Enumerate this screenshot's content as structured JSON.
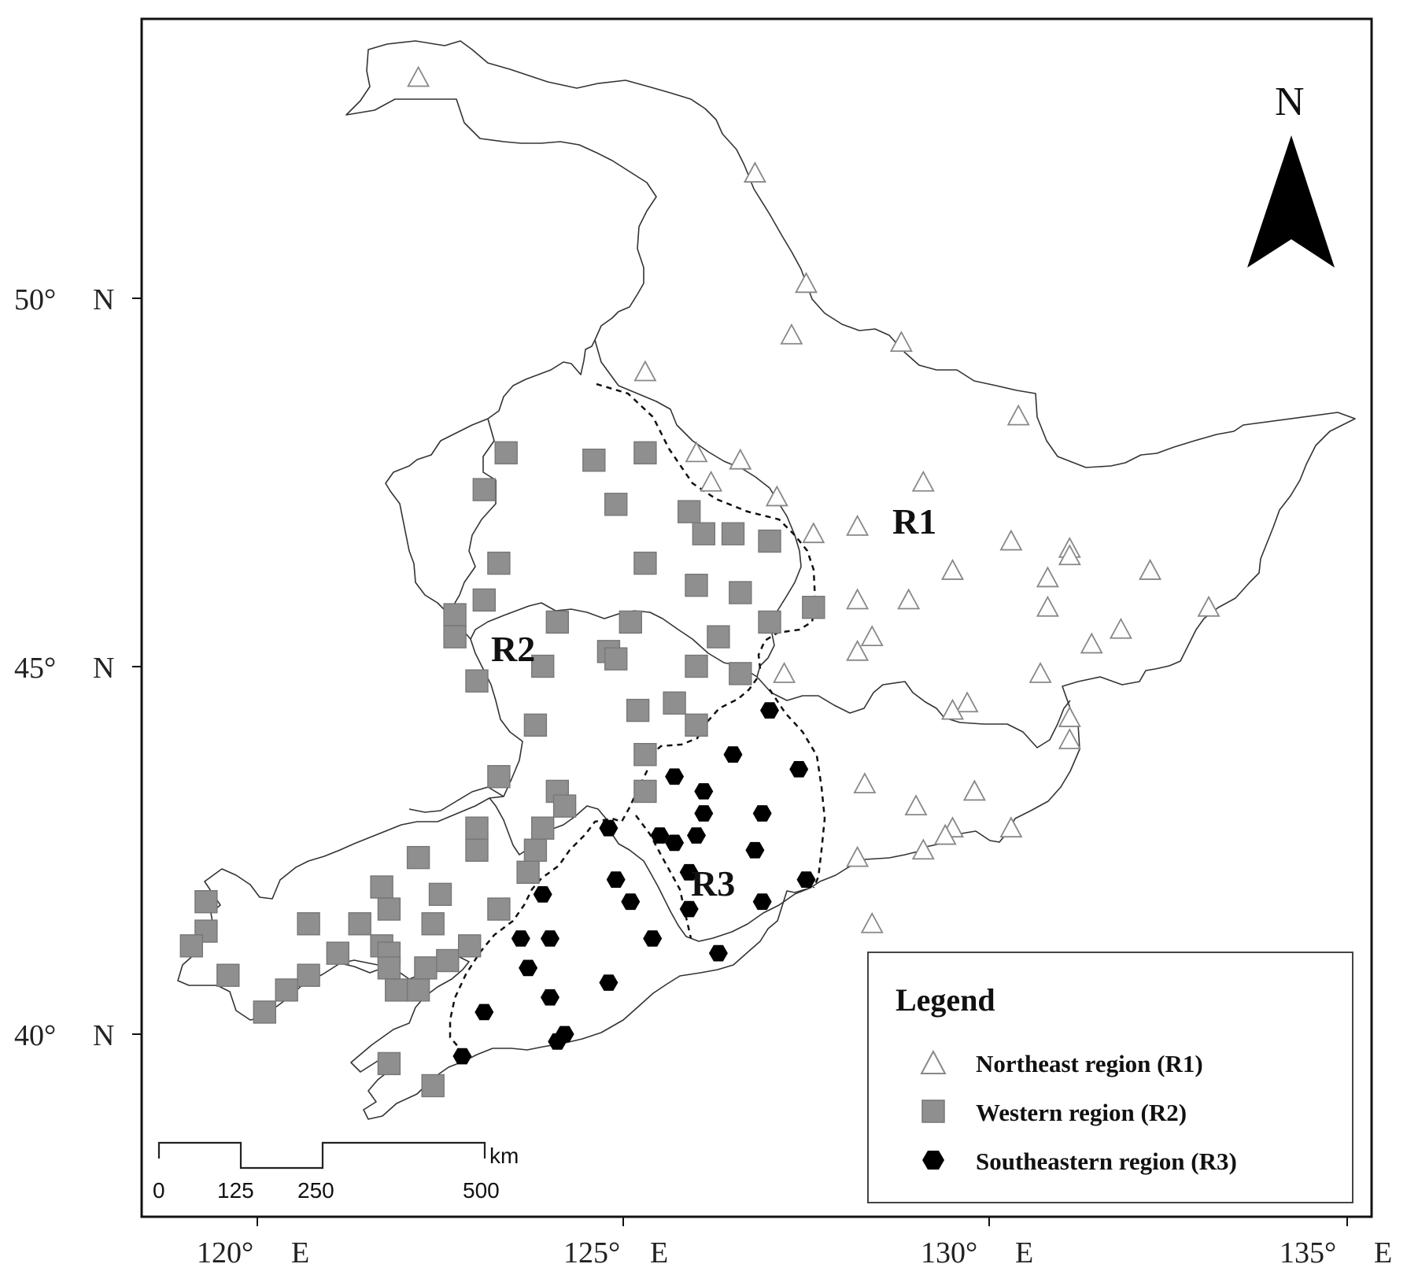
{
  "axes": {
    "lat_ticks": [
      {
        "value": 50,
        "deg": "50°",
        "hem": "N"
      },
      {
        "value": 45,
        "deg": "45°",
        "hem": "N"
      },
      {
        "value": 40,
        "deg": "40°",
        "hem": "N"
      }
    ],
    "lon_ticks": [
      {
        "value": 120,
        "deg": "120°",
        "hem": "E"
      },
      {
        "value": 125,
        "deg": "125°",
        "hem": "E"
      },
      {
        "value": 130,
        "deg": "130°",
        "hem": "E"
      },
      {
        "value": 135,
        "deg": "135°",
        "hem": "E"
      }
    ]
  },
  "north_arrow": {
    "label": "N"
  },
  "region_labels": [
    {
      "text": "R1"
    },
    {
      "text": "R2"
    },
    {
      "text": "R3"
    }
  ],
  "legend": {
    "title": "Legend",
    "items": [
      {
        "label": "Northeast region (R1)",
        "symbol": "triangle"
      },
      {
        "label": "Western region (R2)",
        "symbol": "square"
      },
      {
        "label": "Southeastern region (R3)",
        "symbol": "hexagon"
      }
    ]
  },
  "scale_bar": {
    "ticks": [
      "0",
      "125",
      "250",
      "500"
    ],
    "unit": "km"
  },
  "colors": {
    "r1": "#ffffff",
    "r2": "#8f8f8f",
    "r3": "#000000",
    "boundary": "#333333"
  },
  "stations": {
    "r1": [
      [
        122.2,
        53.0
      ],
      [
        126.8,
        51.7
      ],
      [
        127.5,
        50.2
      ],
      [
        127.3,
        49.5
      ],
      [
        128.8,
        49.4
      ],
      [
        125.3,
        49.0
      ],
      [
        130.4,
        48.4
      ],
      [
        126.0,
        47.9
      ],
      [
        126.6,
        47.8
      ],
      [
        126.2,
        47.5
      ],
      [
        127.1,
        47.3
      ],
      [
        129.1,
        47.5
      ],
      [
        127.6,
        46.8
      ],
      [
        128.2,
        46.9
      ],
      [
        130.3,
        46.7
      ],
      [
        131.1,
        46.6
      ],
      [
        131.1,
        46.5
      ],
      [
        129.5,
        46.3
      ],
      [
        130.8,
        46.2
      ],
      [
        132.2,
        46.3
      ],
      [
        128.2,
        45.9
      ],
      [
        128.9,
        45.9
      ],
      [
        130.8,
        45.8
      ],
      [
        133.0,
        45.8
      ],
      [
        131.8,
        45.5
      ],
      [
        128.4,
        45.4
      ],
      [
        128.2,
        45.2
      ],
      [
        131.4,
        45.3
      ],
      [
        130.7,
        44.9
      ],
      [
        127.2,
        44.9
      ],
      [
        129.7,
        44.5
      ],
      [
        129.5,
        44.4
      ],
      [
        131.1,
        44.3
      ],
      [
        131.1,
        44.0
      ],
      [
        128.3,
        43.4
      ],
      [
        129.8,
        43.3
      ],
      [
        129.0,
        43.1
      ],
      [
        129.5,
        42.8
      ],
      [
        129.4,
        42.7
      ],
      [
        130.3,
        42.8
      ],
      [
        128.2,
        42.4
      ],
      [
        129.1,
        42.5
      ],
      [
        128.4,
        41.5
      ]
    ],
    "r2": [
      [
        123.4,
        47.9
      ],
      [
        124.6,
        47.8
      ],
      [
        125.3,
        47.9
      ],
      [
        123.1,
        47.4
      ],
      [
        124.9,
        47.2
      ],
      [
        125.9,
        47.1
      ],
      [
        126.1,
        46.8
      ],
      [
        126.5,
        46.8
      ],
      [
        127.0,
        46.7
      ],
      [
        123.3,
        46.4
      ],
      [
        125.3,
        46.4
      ],
      [
        126.0,
        46.1
      ],
      [
        126.6,
        46.0
      ],
      [
        123.1,
        45.9
      ],
      [
        127.6,
        45.8
      ],
      [
        122.7,
        45.7
      ],
      [
        122.7,
        45.4
      ],
      [
        124.1,
        45.6
      ],
      [
        125.1,
        45.6
      ],
      [
        127.0,
        45.6
      ],
      [
        124.8,
        45.2
      ],
      [
        124.9,
        45.1
      ],
      [
        126.3,
        45.4
      ],
      [
        123.9,
        45.0
      ],
      [
        126.0,
        45.0
      ],
      [
        123.0,
        44.8
      ],
      [
        126.6,
        44.9
      ],
      [
        125.7,
        44.5
      ],
      [
        126.0,
        44.2
      ],
      [
        125.2,
        44.4
      ],
      [
        123.8,
        44.2
      ],
      [
        125.3,
        43.8
      ],
      [
        123.3,
        43.5
      ],
      [
        124.1,
        43.3
      ],
      [
        125.3,
        43.3
      ],
      [
        124.2,
        43.1
      ],
      [
        123.0,
        42.8
      ],
      [
        123.9,
        42.8
      ],
      [
        123.0,
        42.5
      ],
      [
        123.8,
        42.5
      ],
      [
        122.2,
        42.4
      ],
      [
        123.7,
        42.2
      ],
      [
        121.7,
        42.0
      ],
      [
        122.5,
        41.9
      ],
      [
        119.3,
        41.8
      ],
      [
        121.8,
        41.7
      ],
      [
        123.3,
        41.7
      ],
      [
        120.7,
        41.5
      ],
      [
        121.4,
        41.5
      ],
      [
        122.4,
        41.5
      ],
      [
        119.3,
        41.4
      ],
      [
        121.7,
        41.2
      ],
      [
        121.8,
        41.1
      ],
      [
        121.1,
        41.1
      ],
      [
        122.6,
        41.0
      ],
      [
        122.9,
        41.2
      ],
      [
        119.1,
        41.2
      ],
      [
        121.8,
        40.9
      ],
      [
        122.3,
        40.9
      ],
      [
        120.7,
        40.8
      ],
      [
        119.6,
        40.8
      ],
      [
        120.4,
        40.6
      ],
      [
        121.9,
        40.6
      ],
      [
        122.2,
        40.6
      ],
      [
        120.1,
        40.3
      ],
      [
        121.8,
        39.6
      ],
      [
        122.4,
        39.3
      ]
    ],
    "r3": [
      [
        127.0,
        44.4
      ],
      [
        126.5,
        43.8
      ],
      [
        127.4,
        43.6
      ],
      [
        125.7,
        43.5
      ],
      [
        126.1,
        43.3
      ],
      [
        126.1,
        43.0
      ],
      [
        126.9,
        43.0
      ],
      [
        124.8,
        42.8
      ],
      [
        125.5,
        42.7
      ],
      [
        126.0,
        42.7
      ],
      [
        125.7,
        42.6
      ],
      [
        126.8,
        42.5
      ],
      [
        125.9,
        42.2
      ],
      [
        127.5,
        42.1
      ],
      [
        124.9,
        42.1
      ],
      [
        123.9,
        41.9
      ],
      [
        125.1,
        41.8
      ],
      [
        126.9,
        41.8
      ],
      [
        125.9,
        41.7
      ],
      [
        123.6,
        41.3
      ],
      [
        124.0,
        41.3
      ],
      [
        125.4,
        41.3
      ],
      [
        126.3,
        41.1
      ],
      [
        123.7,
        40.9
      ],
      [
        124.8,
        40.7
      ],
      [
        124.0,
        40.5
      ],
      [
        123.1,
        40.3
      ],
      [
        124.2,
        40.0
      ],
      [
        124.1,
        39.9
      ],
      [
        122.8,
        39.7
      ]
    ]
  }
}
